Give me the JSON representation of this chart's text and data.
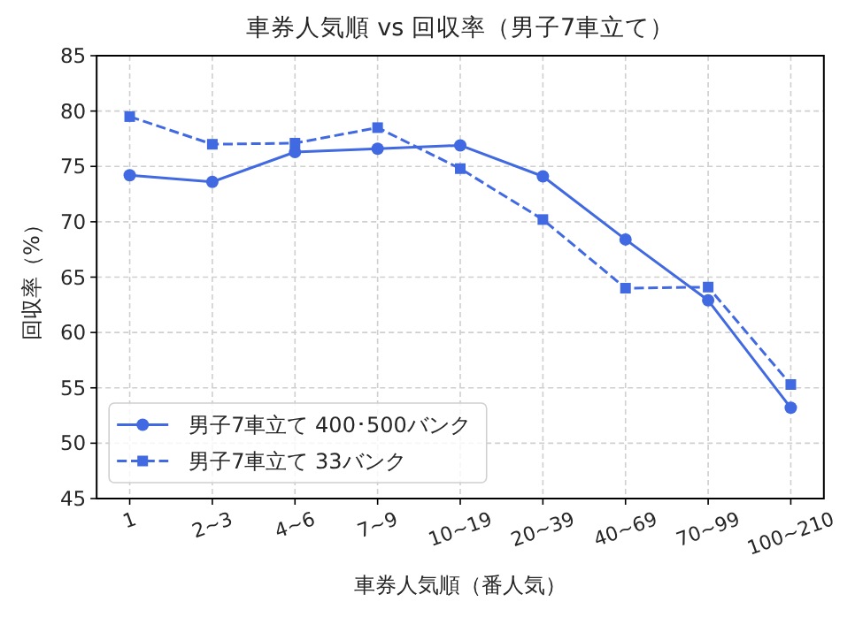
{
  "chart_data": {
    "type": "line",
    "title": "車券人気順 vs 回収率（男子7車立て）",
    "xlabel": "車券人気順（番人気）",
    "ylabel": "回収率（%）",
    "categories": [
      "1",
      "2~3",
      "4~6",
      "7~9",
      "10~19",
      "20~39",
      "40~69",
      "70~99",
      "100~210"
    ],
    "series": [
      {
        "name": "男子7車立て 400･500バンク",
        "color": "#4169e1",
        "marker": "circle",
        "line_style": "solid",
        "values": [
          74.2,
          73.6,
          76.3,
          76.6,
          76.9,
          74.1,
          68.4,
          62.9,
          53.2
        ]
      },
      {
        "name": "男子7車立て 33バンク",
        "color": "#4169e1",
        "marker": "square",
        "line_style": "dashed",
        "values": [
          79.5,
          77.0,
          77.1,
          78.5,
          74.8,
          70.2,
          64.0,
          64.1,
          55.3
        ]
      }
    ],
    "ylim": [
      45,
      85
    ],
    "yticks": [
      45,
      50,
      55,
      60,
      65,
      70,
      75,
      80,
      85
    ],
    "grid": true,
    "legend": "bottom left"
  }
}
